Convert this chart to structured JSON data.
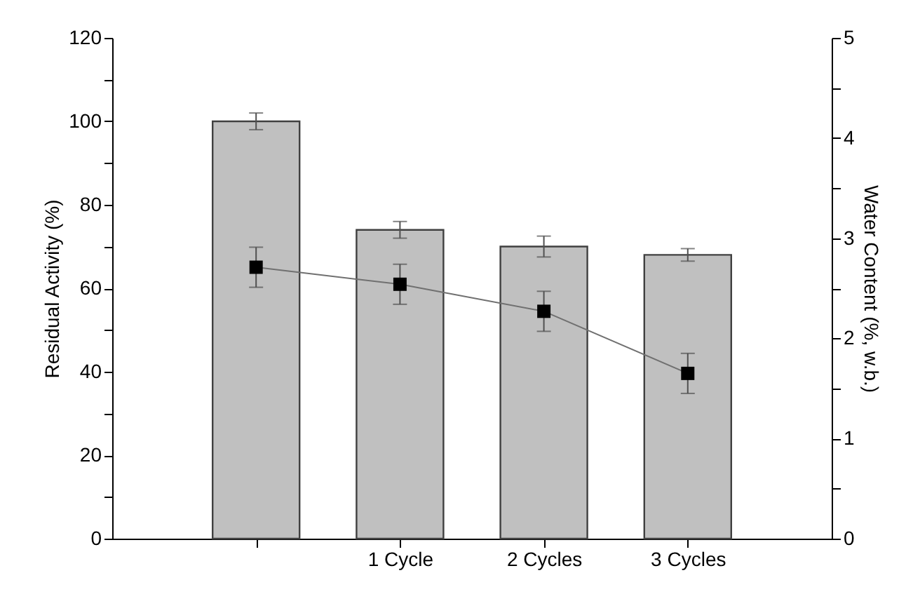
{
  "chart_data": {
    "type": "bar",
    "categories": [
      null,
      "1 Cycle",
      "2 Cycles",
      "3 Cycles"
    ],
    "ylabel": "Residual Activity (%)",
    "y2label": "Water Content (%, w.b.)",
    "series": [
      {
        "color": "#c0c0c0",
        "values": [
          100,
          74,
          70,
          68
        ],
        "errors": [
          2,
          2,
          2.5,
          1.5
        ]
      },
      {
        "type": "line",
        "axis": "y2",
        "color": "#000000",
        "marker": "square",
        "values": [
          2.71,
          2.54,
          2.27,
          1.65
        ],
        "errors": [
          0.2,
          0.2,
          0.2,
          0.2
        ]
      }
    ],
    "ylim": [
      0,
      120
    ],
    "yticks": [
      0,
      {
        "value": 10,
        "label": null
      },
      20,
      {
        "value": 30,
        "label": null
      },
      40,
      {
        "value": 50,
        "label": null
      },
      60,
      {
        "value": 70,
        "label": null
      },
      80,
      {
        "value": 90,
        "label": null
      },
      100,
      {
        "value": 110,
        "label": null
      },
      120
    ],
    "y2lim": [
      0,
      5
    ],
    "y2ticks": [
      0,
      {
        "value": 0.5,
        "label": null
      },
      1,
      {
        "value": 1.5,
        "label": null
      },
      2,
      {
        "value": 2.5,
        "label": null
      },
      3,
      {
        "value": 3.5,
        "label": null
      },
      4,
      {
        "value": 4.5,
        "label": null
      },
      5
    ],
    "grid": false
  }
}
